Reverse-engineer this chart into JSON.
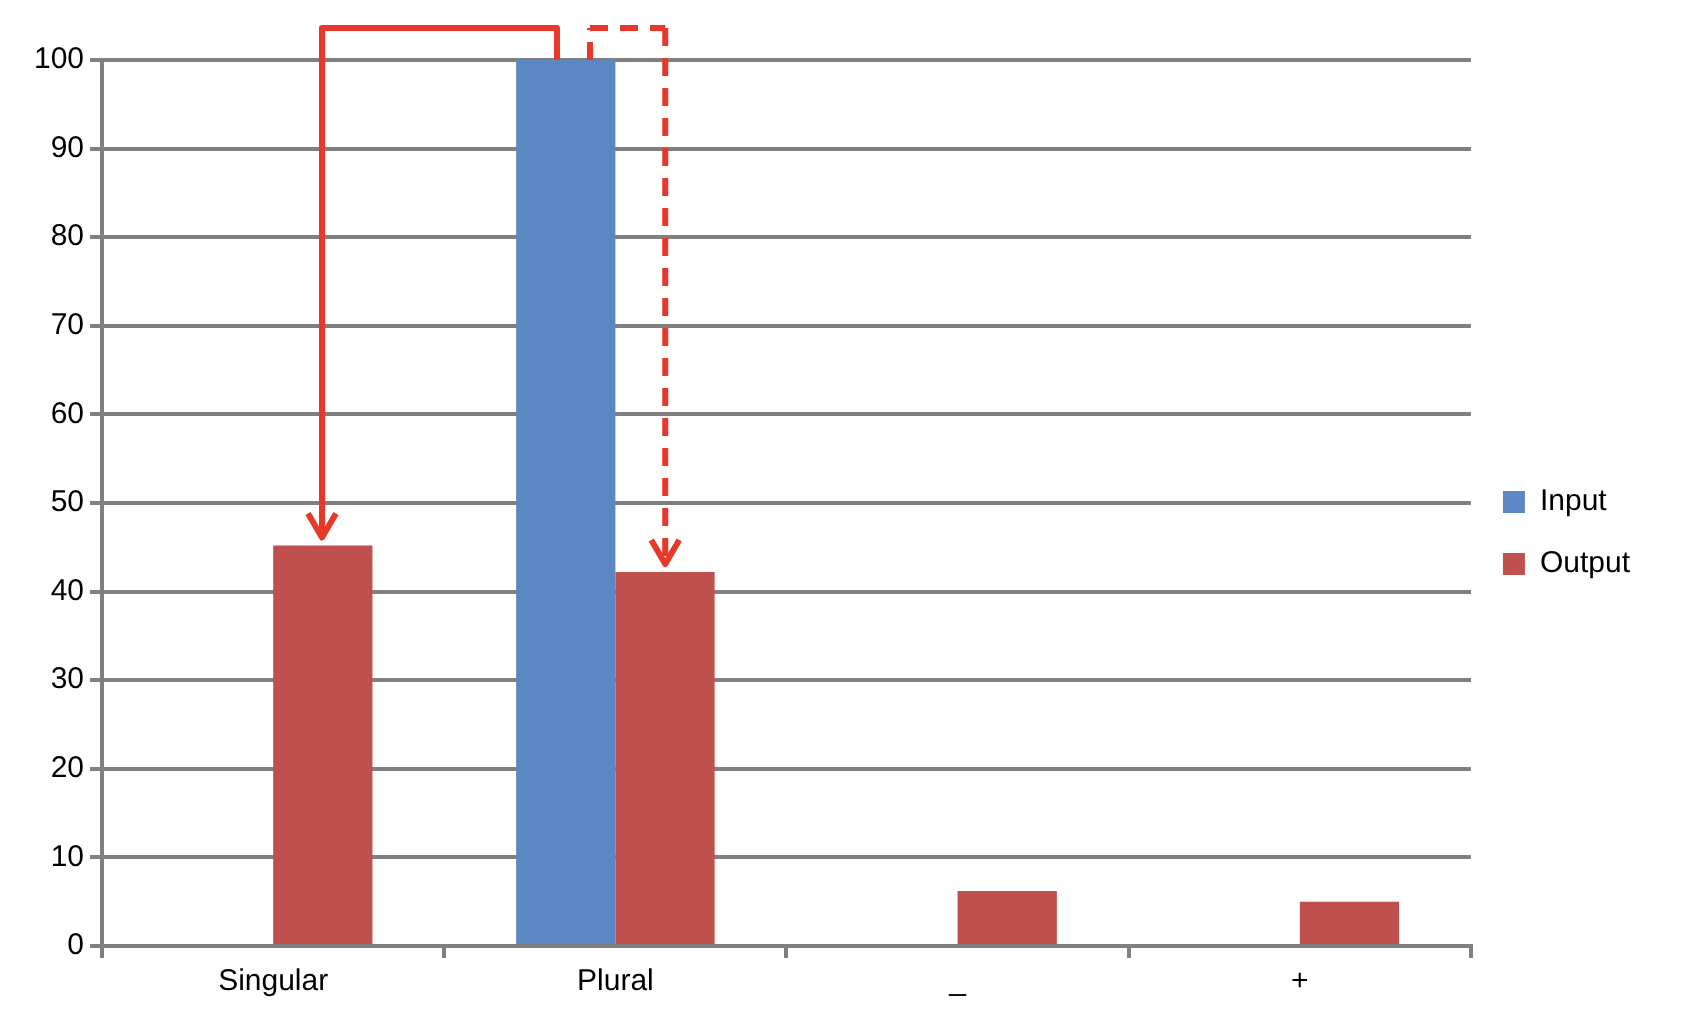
{
  "chart_data": {
    "type": "bar",
    "categories": [
      "Singular",
      "Plural",
      "_",
      "+"
    ],
    "series": [
      {
        "name": "Input",
        "color": "#5b87c2",
        "values": [
          null,
          100,
          null,
          null
        ]
      },
      {
        "name": "Output",
        "color": "#c0504d",
        "values": [
          45.2,
          42.2,
          6.2,
          5.0
        ]
      }
    ],
    "ylim": [
      0,
      100
    ],
    "yticks": [
      0,
      10,
      20,
      30,
      40,
      50,
      60,
      70,
      80,
      90,
      100
    ],
    "grid": "y",
    "legend": "right"
  }
}
